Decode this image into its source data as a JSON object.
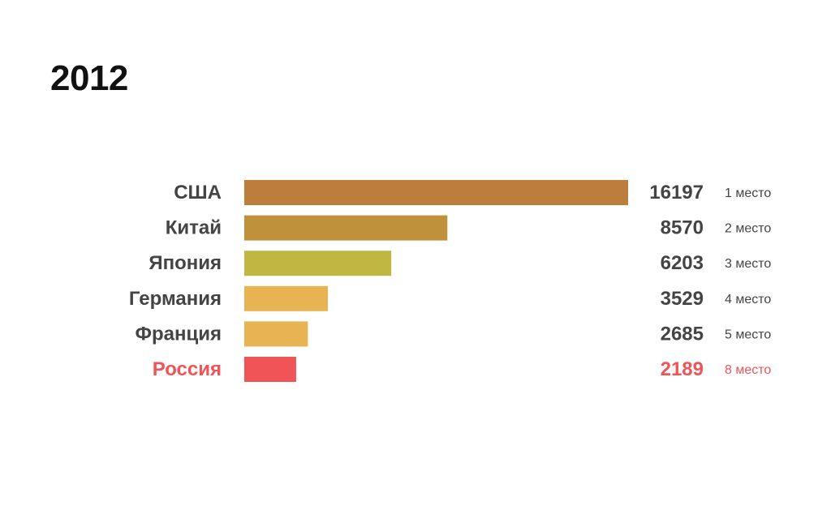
{
  "chart_data": {
    "type": "bar",
    "orientation": "horizontal",
    "title": "2012",
    "categories": [
      "США",
      "Китай",
      "Япония",
      "Германия",
      "Франция",
      "Россия"
    ],
    "values": [
      16197,
      8570,
      6203,
      3529,
      2685,
      2189
    ],
    "value_labels": [
      "16197",
      "8570",
      "6203",
      "3529",
      "2685",
      "2189"
    ],
    "rank_labels": [
      "1 место",
      "2 место",
      "3 место",
      "4 место",
      "5 место",
      "8 место"
    ],
    "bar_colors": [
      "#bd7d3d",
      "#c0913b",
      "#c0b642",
      "#e8b352",
      "#e8b352",
      "#f05456"
    ],
    "label_colors": [
      "#444444",
      "#444444",
      "#444444",
      "#444444",
      "#444444",
      "#f05456"
    ],
    "rank_colors": [
      "#444444",
      "#444444",
      "#444444",
      "#444444",
      "#444444",
      "#f05456"
    ],
    "xlim": [
      0,
      16197
    ],
    "grid": false,
    "legend": "none"
  }
}
